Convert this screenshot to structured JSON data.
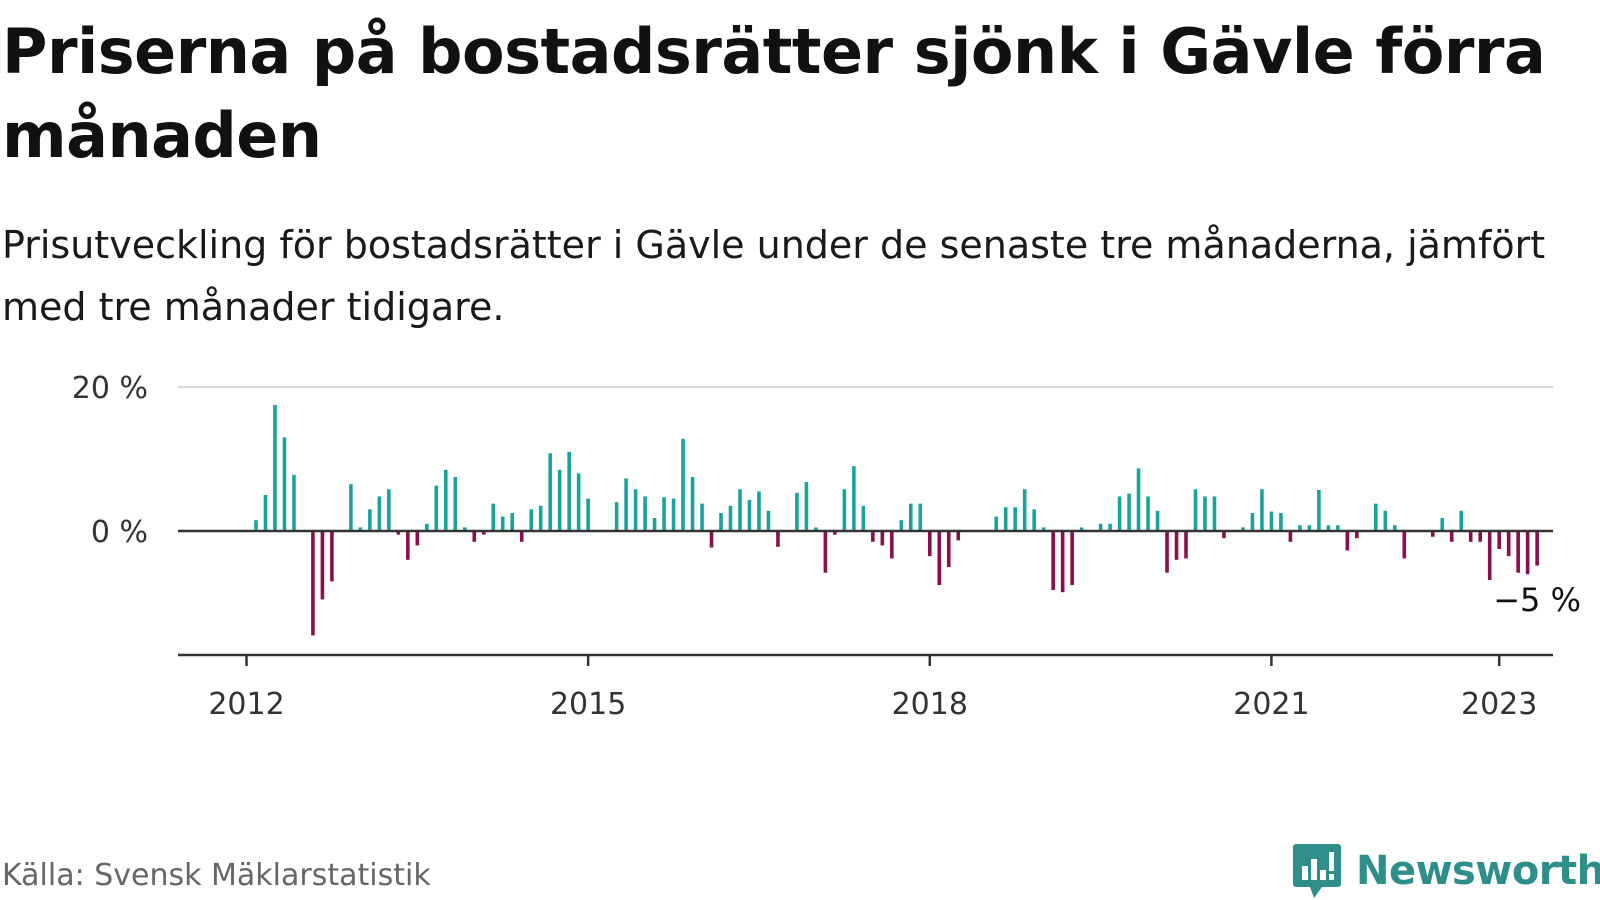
{
  "title": "Priserna på bostadsrätter sjönk i Gävle förra månaden",
  "subtitle": "Prisutveckling för bostadsrätter i Gävle under de senaste tre månaderna, jämfört med tre månader tidigare.",
  "source": "Källa: Svensk Mäklarstatistik",
  "brand": "Newsworthy",
  "colors": {
    "positive": "#1aa39a",
    "negative": "#8b0e4d",
    "grid": "#d9d9d9",
    "axis": "#333333",
    "brand": "#2e8f8a"
  },
  "chart_data": {
    "type": "bar",
    "x_start": "2012-01",
    "x_ticks": [
      "2012",
      "2015",
      "2018",
      "2021",
      "2023"
    ],
    "y_ticks": [
      "20 %",
      "0 %"
    ],
    "ylim": [
      -17,
      20
    ],
    "unit": "%",
    "annotation": "−5 %",
    "values": [
      0,
      1.5,
      5,
      17.5,
      13,
      7.8,
      0,
      -14.5,
      -9.5,
      -7,
      0,
      6.5,
      0.5,
      3,
      4.8,
      5.8,
      -0.5,
      -4,
      -2,
      1,
      6.3,
      8.5,
      7.5,
      0.5,
      -1.5,
      -0.5,
      3.8,
      2,
      2.5,
      -1.5,
      3,
      3.5,
      10.8,
      8.5,
      11,
      8,
      4.5,
      0,
      0,
      4,
      7.3,
      5.8,
      4.8,
      1.8,
      4.7,
      4.5,
      12.8,
      7.5,
      3.8,
      -2.3,
      2.5,
      3.5,
      5.8,
      4.3,
      5.5,
      2.8,
      -2.2,
      0,
      5.3,
      6.8,
      0.5,
      -5.8,
      -0.5,
      5.8,
      9,
      3.5,
      -1.5,
      -2,
      -3.8,
      1.5,
      3.8,
      3.8,
      -3.5,
      -7.5,
      -5,
      -1.3,
      0,
      0,
      0,
      2,
      3.3,
      3.3,
      5.8,
      3,
      0.5,
      -8.2,
      -8.5,
      -7.5,
      0.5,
      0,
      1,
      1,
      4.8,
      5.2,
      8.7,
      4.8,
      2.8,
      -5.8,
      -4,
      -3.8,
      5.8,
      4.8,
      4.8,
      -1,
      0,
      0.5,
      2.5,
      5.8,
      2.7,
      2.5,
      -1.5,
      0.8,
      0.8,
      5.7,
      0.8,
      0.8,
      -2.7,
      -1,
      0,
      3.8,
      2.8,
      0.8,
      -3.8,
      0,
      0,
      -0.8,
      1.8,
      -1.5,
      2.8,
      -1.5,
      -1.5,
      -6.8,
      -2.5,
      -3.5,
      -5.8,
      -6,
      -4.8
    ]
  }
}
